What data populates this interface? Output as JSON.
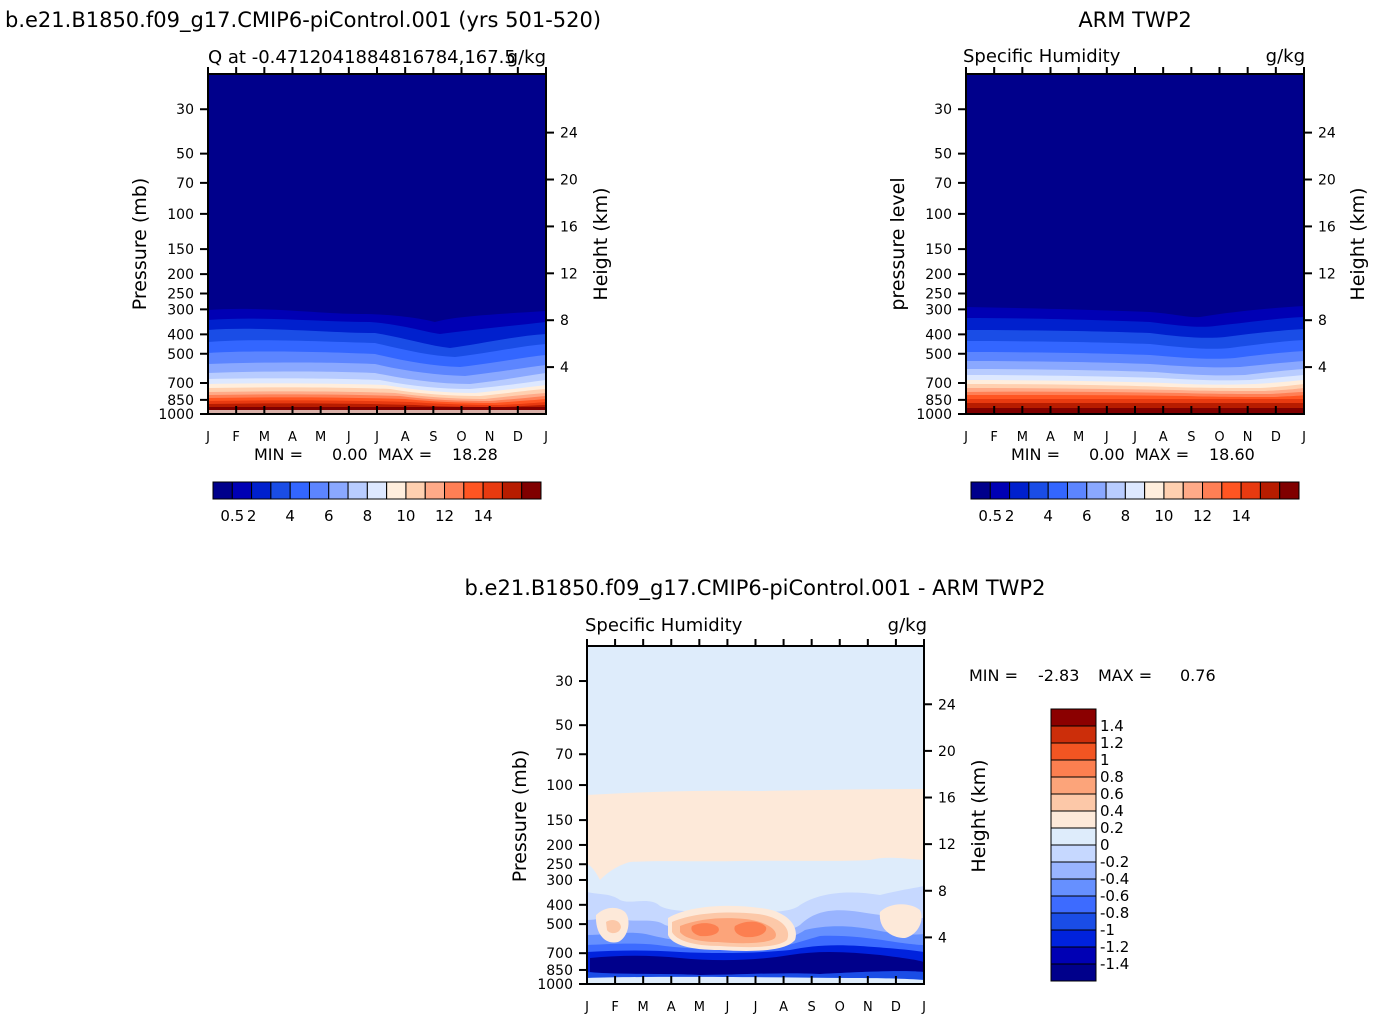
{
  "panels": [
    {
      "kind": "contour-time-height",
      "title": "b.e21.B1850.f09_g17.CMIP6-piControl.001 (yrs 501-520)",
      "subtitle_left": "Q at -0.4712041884816784,167.5",
      "subtitle_right": "g/kg",
      "ylabel_left": "Pressure (mb)",
      "ylabel_right": "Height (km)",
      "stats": {
        "min_label": "MIN =",
        "min": "0.00",
        "max_label": "MAX =",
        "max": "18.28"
      },
      "colorbar_ticks": [
        "0.5",
        "2",
        "4",
        "6",
        "8",
        "10",
        "12",
        "14"
      ]
    },
    {
      "kind": "contour-time-height",
      "title": "ARM TWP2",
      "subtitle_left": "Specific Humidity",
      "subtitle_right": "g/kg",
      "ylabel_left": "pressure level",
      "ylabel_right": "Height (km)",
      "stats": {
        "min_label": "MIN =",
        "min": "0.00",
        "max_label": "MAX =",
        "max": "18.60"
      },
      "colorbar_ticks": [
        "0.5",
        "2",
        "4",
        "6",
        "8",
        "10",
        "12",
        "14"
      ]
    },
    {
      "kind": "contour-time-height-difference",
      "title": "b.e21.B1850.f09_g17.CMIP6-piControl.001 - ARM TWP2",
      "subtitle_left": "Specific Humidity",
      "subtitle_right": "g/kg",
      "ylabel_left": "Pressure (mb)",
      "ylabel_right": "Height (km)",
      "stats": {
        "min_label": "MIN =",
        "min": "-2.83",
        "max_label": "MAX =",
        "max": "0.76"
      },
      "colorbar_ticks": [
        "1.4",
        "1.2",
        "1",
        "0.8",
        "0.6",
        "0.4",
        "0.2",
        "0",
        "-0.2",
        "-0.4",
        "-0.6",
        "-0.8",
        "-1",
        "-1.2",
        "-1.4"
      ]
    }
  ],
  "chart_data": [
    {
      "type": "heatmap",
      "title": "b.e21.B1850.f09_g17.CMIP6-piControl.001 (yrs 501-520)",
      "x": [
        "J",
        "F",
        "M",
        "A",
        "M",
        "J",
        "J",
        "A",
        "S",
        "O",
        "N",
        "D",
        "J"
      ],
      "y_pressure_ticks": [
        30,
        50,
        70,
        100,
        150,
        200,
        250,
        300,
        400,
        500,
        700,
        850,
        1000
      ],
      "y_height_ticks": [
        24,
        20,
        16,
        12,
        8,
        4
      ],
      "xlabel": "",
      "ylabel": "Pressure (mb)",
      "ylabel_right": "Height (km)",
      "min": 0.0,
      "max": 18.28,
      "levels": [
        0.5,
        1,
        2,
        3,
        4,
        5,
        6,
        7,
        8,
        9,
        10,
        11,
        12,
        13,
        14,
        15
      ],
      "colors": [
        "#00008b",
        "#0000b4",
        "#0020cd",
        "#1a4de6",
        "#3366ff",
        "#5c85ff",
        "#8aa8ff",
        "#b8ccff",
        "#dde8ff",
        "#ffeedd",
        "#ffd0b0",
        "#ffaa88",
        "#ff7f55",
        "#ff5522",
        "#e83a10",
        "#b71c00",
        "#800000"
      ]
    },
    {
      "type": "heatmap",
      "title": "ARM TWP2",
      "x": [
        "J",
        "F",
        "M",
        "A",
        "M",
        "J",
        "J",
        "A",
        "S",
        "O",
        "N",
        "D",
        "J"
      ],
      "y_pressure_ticks": [
        30,
        50,
        70,
        100,
        150,
        200,
        250,
        300,
        400,
        500,
        700,
        850,
        1000
      ],
      "y_height_ticks": [
        24,
        20,
        16,
        12,
        8,
        4
      ],
      "xlabel": "",
      "ylabel": "pressure level",
      "ylabel_right": "Height (km)",
      "min": 0.0,
      "max": 18.6,
      "levels": [
        0.5,
        1,
        2,
        3,
        4,
        5,
        6,
        7,
        8,
        9,
        10,
        11,
        12,
        13,
        14,
        15
      ],
      "colors": [
        "#00008b",
        "#0000b4",
        "#0020cd",
        "#1a4de6",
        "#3366ff",
        "#5c85ff",
        "#8aa8ff",
        "#b8ccff",
        "#dde8ff",
        "#ffeedd",
        "#ffd0b0",
        "#ffaa88",
        "#ff7f55",
        "#ff5522",
        "#e83a10",
        "#b71c00",
        "#800000"
      ]
    },
    {
      "type": "heatmap",
      "title": "b.e21.B1850.f09_g17.CMIP6-piControl.001 - ARM TWP2",
      "x": [
        "J",
        "F",
        "M",
        "A",
        "M",
        "J",
        "J",
        "A",
        "S",
        "O",
        "N",
        "D",
        "J"
      ],
      "y_pressure_ticks": [
        30,
        50,
        70,
        100,
        150,
        200,
        250,
        300,
        400,
        500,
        700,
        850,
        1000
      ],
      "y_height_ticks": [
        24,
        20,
        16,
        12,
        8,
        4
      ],
      "xlabel": "",
      "ylabel": "Pressure (mb)",
      "ylabel_right": "Height (km)",
      "min": -2.83,
      "max": 0.76,
      "levels": [
        -1.4,
        -1.2,
        -1,
        -0.8,
        -0.6,
        -0.4,
        -0.2,
        0,
        0.2,
        0.4,
        0.6,
        0.8,
        1,
        1.2,
        1.4
      ],
      "colors": [
        "#00008b",
        "#0000b4",
        "#0022dd",
        "#1a4de6",
        "#3d6bff",
        "#6690ff",
        "#99b4ff",
        "#c6d8ff",
        "#deecfb",
        "#fde9d9",
        "#fcc8a8",
        "#fca47a",
        "#fc7f50",
        "#f25522",
        "#cc2e0a",
        "#8b0000"
      ]
    }
  ]
}
